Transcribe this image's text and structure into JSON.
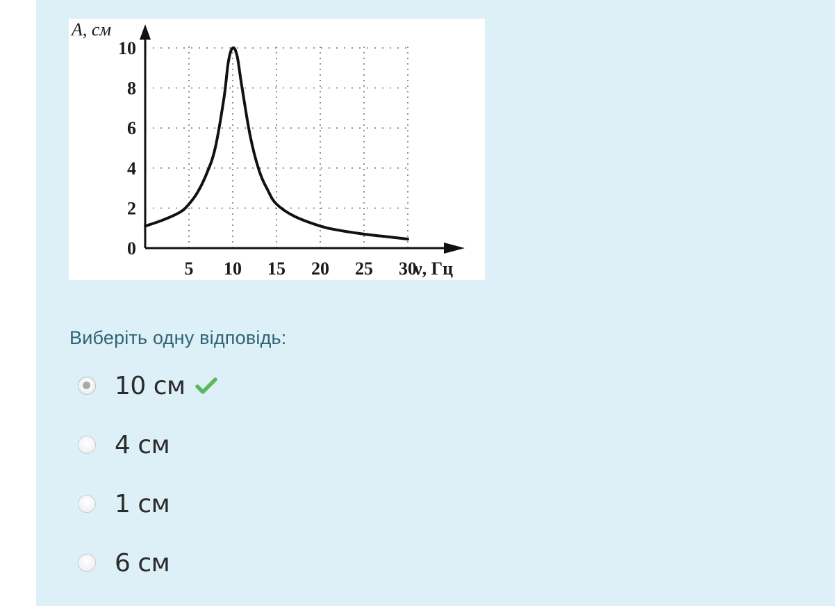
{
  "chart_data": {
    "type": "line",
    "y_axis_label": "A, см",
    "x_axis_label": "ν, Гц",
    "y_ticks": [
      "0",
      "2",
      "4",
      "6",
      "8",
      "10"
    ],
    "x_ticks": [
      "5",
      "10",
      "15",
      "20",
      "25",
      "30"
    ],
    "xlim": [
      0,
      30
    ],
    "ylim": [
      0,
      10
    ],
    "grid": "dotted",
    "series": [
      {
        "x": [
          0,
          2,
          4,
          5,
          6,
          7,
          8,
          9,
          9.5,
          10,
          10.5,
          11,
          12,
          13,
          14,
          15,
          17,
          20,
          22,
          25,
          28,
          30
        ],
        "y": [
          1.1,
          1.4,
          1.8,
          2.2,
          2.8,
          3.7,
          5.0,
          7.5,
          9.3,
          10,
          9.6,
          8.2,
          5.6,
          3.9,
          2.9,
          2.2,
          1.6,
          1.1,
          0.9,
          0.7,
          0.55,
          0.45
        ]
      }
    ]
  },
  "question": {
    "prompt": "Виберіть одну відповідь:",
    "options": [
      {
        "label": "10 см",
        "selected": true,
        "correct": true
      },
      {
        "label": "4 см",
        "selected": false
      },
      {
        "label": "1 см",
        "selected": false
      },
      {
        "label": "6 см",
        "selected": false
      }
    ]
  },
  "colors": {
    "panel_bg": "#def0f7",
    "prompt_text": "#2f6473",
    "correct_check": "#5cb85c"
  }
}
